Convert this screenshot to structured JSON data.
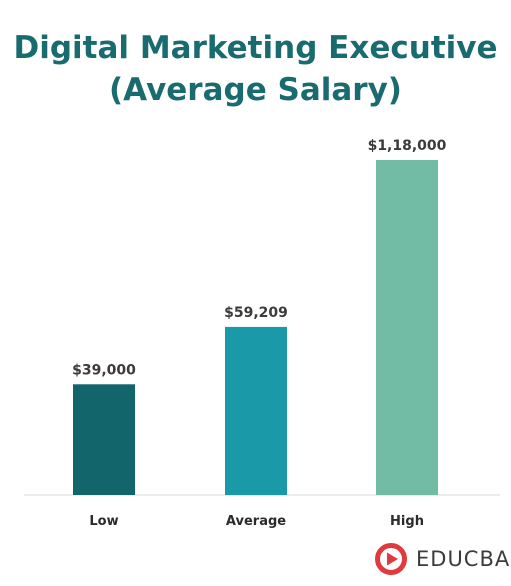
{
  "title_lines": [
    "Digital Marketing Executive",
    "(Average Salary)"
  ],
  "colors": {
    "title": "#1a6b70",
    "low": "#12656b",
    "average": "#1a9aa8",
    "high": "#72bba5",
    "logo": "#e0393e"
  },
  "brand": {
    "name": "EDUCBA",
    "logo_icon": "play-badge-icon"
  },
  "chart_data": {
    "type": "bar",
    "title": "Digital Marketing Executive (Average Salary)",
    "categories": [
      "Low",
      "Average",
      "High"
    ],
    "values": [
      39000,
      59209,
      118000
    ],
    "value_labels": [
      "$39,000",
      "$59,209",
      "$1,18,000"
    ],
    "ylim": [
      0,
      118000
    ],
    "grid": false,
    "legend": "none"
  }
}
